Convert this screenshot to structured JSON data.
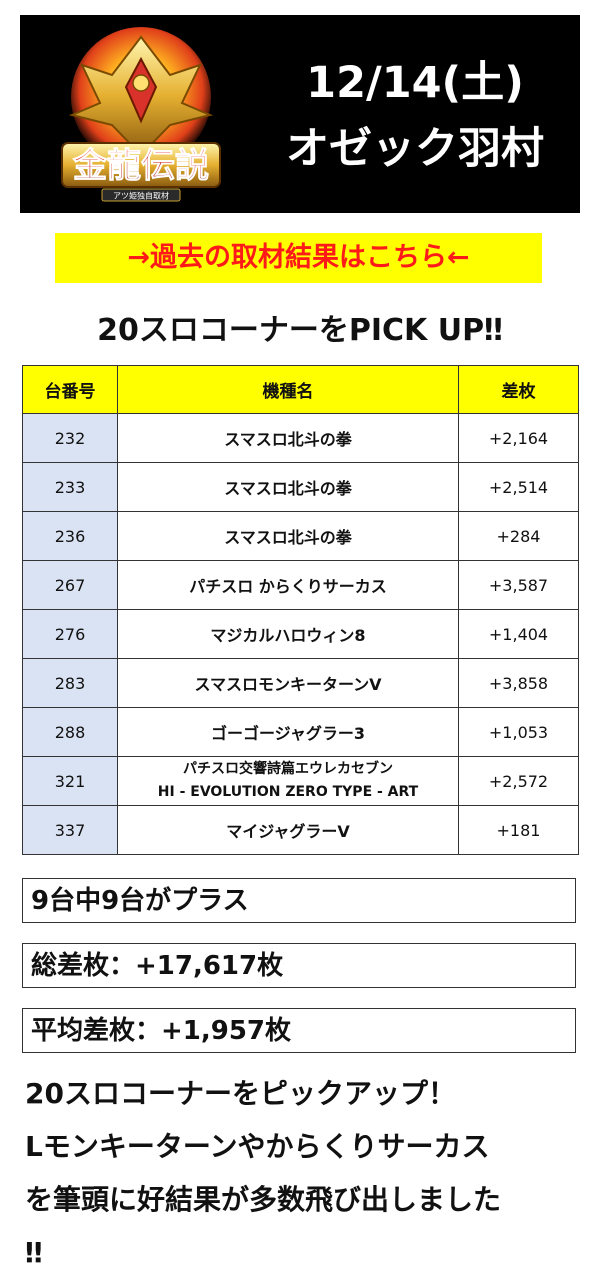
{
  "header": {
    "logo_text": "金龍伝説",
    "logo_subtext": "アツ姫独自取材",
    "date": "12/14(土)",
    "store": "オゼック羽村"
  },
  "past_results_link": "→過去の取材結果はこちら←",
  "section_title": "20スロコーナーをPICK UP‼",
  "table": {
    "headers": [
      "台番号",
      "機種名",
      "差枚"
    ],
    "rows": [
      {
        "num": "232",
        "model": "スマスロ北斗の拳",
        "diff": "+2,164"
      },
      {
        "num": "233",
        "model": "スマスロ北斗の拳",
        "diff": "+2,514"
      },
      {
        "num": "236",
        "model": "スマスロ北斗の拳",
        "diff": "+284"
      },
      {
        "num": "267",
        "model": "パチスロ からくりサーカス",
        "diff": "+3,587"
      },
      {
        "num": "276",
        "model": "マジカルハロウィン8",
        "diff": "+1,404"
      },
      {
        "num": "283",
        "model": "スマスロモンキーターンV",
        "diff": "+3,858"
      },
      {
        "num": "288",
        "model": "ゴーゴージャグラー3",
        "diff": "+1,053"
      },
      {
        "num": "321",
        "model": "パチスロ交響詩篇エウレカセブン",
        "model2": "HI - EVOLUTION ZERO TYPE - ART",
        "diff": "+2,572"
      },
      {
        "num": "337",
        "model": "マイジャグラーV",
        "diff": "+181"
      }
    ]
  },
  "stats": {
    "plus_count": "9台中9台がプラス",
    "total": "総差枚：+17,617枚",
    "average": "平均差枚：+1,957枚"
  },
  "comment": {
    "line1": "20スロコーナーをピックアップ！",
    "line2": "Lモンキーターンやからくりサーカス",
    "line3": "を筆頭に好結果が多数飛び出しました",
    "line4": "‼"
  },
  "colors": {
    "header_bg": "#000000",
    "highlight_yellow": "#ffff00",
    "link_red": "#ff1a1a",
    "number_cell_blue": "#dae3f3"
  }
}
